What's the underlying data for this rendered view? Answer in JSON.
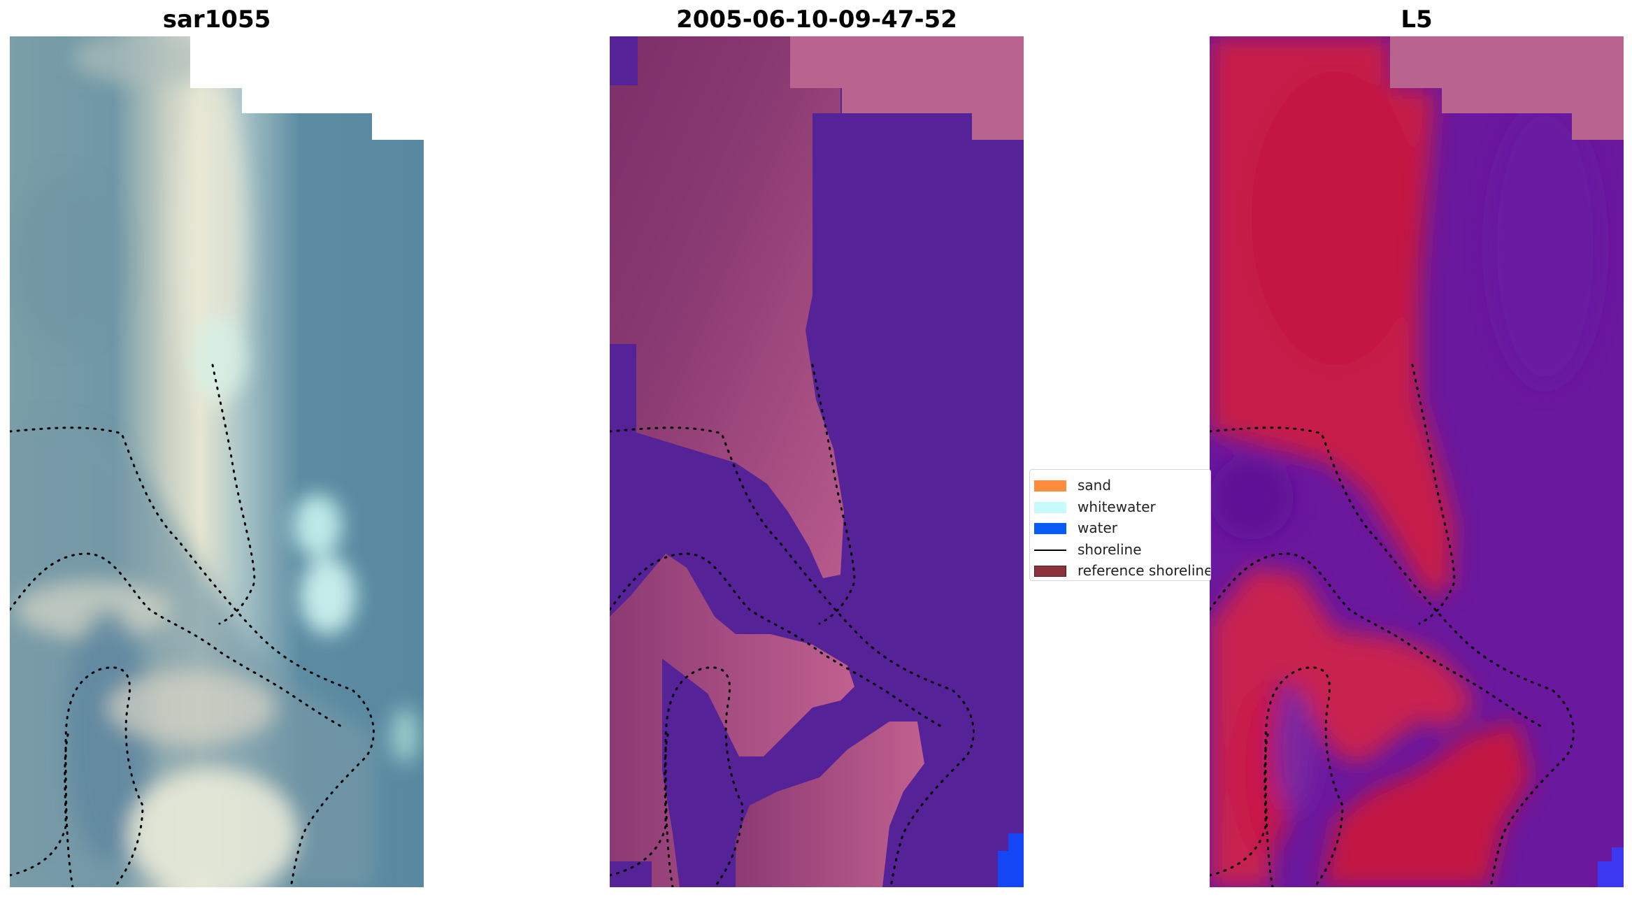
{
  "panels": [
    {
      "title": "sar1055",
      "image_kind": "rgb-satellite-image"
    },
    {
      "title": "2005-06-10-09-47-52",
      "image_kind": "classified-image"
    },
    {
      "title": "L5",
      "image_kind": "mndwi-image"
    }
  ],
  "legend": {
    "placement": "center-right of middle panel",
    "items": [
      {
        "label": "sand",
        "kind": "patch",
        "color": "#ff8c3c"
      },
      {
        "label": "whitewater",
        "kind": "patch",
        "color": "#c8fafa"
      },
      {
        "label": "water",
        "kind": "patch",
        "color": "#0a5af5"
      },
      {
        "label": "shoreline",
        "kind": "line",
        "color": "#000000"
      },
      {
        "label": "reference shoreline",
        "kind": "patch",
        "color": "#8c323c"
      }
    ]
  },
  "colors": {
    "water_class": "#552297",
    "sand_overlay": "#b85a8c",
    "dark_sand": "#7c2e68",
    "mndwi_red": "#c2103c",
    "mndwi_purple": "#6a189e",
    "rgb_blue": "#5a8aa2",
    "rgb_bright": "#e6e8d8",
    "bright_water": "#2646f0"
  }
}
